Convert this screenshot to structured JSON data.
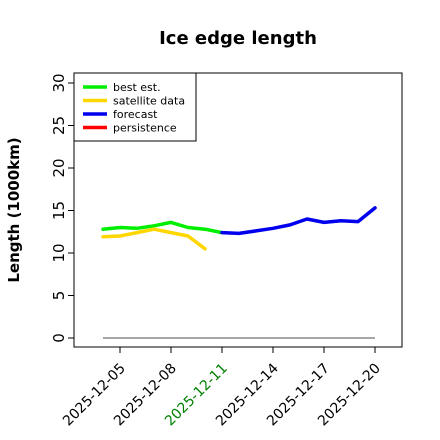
{
  "chart_data": {
    "type": "line",
    "title": "Ice edge length",
    "xlabel": "",
    "ylabel": "Length (1000km)",
    "ylim": [
      0,
      30
    ],
    "yticks": [
      0,
      5,
      10,
      15,
      20,
      25,
      30
    ],
    "xticks": [
      {
        "label": "2025-12-05",
        "color": "#000000"
      },
      {
        "label": "2025-12-08",
        "color": "#000000"
      },
      {
        "label": "2025-12-11",
        "color": "#008000"
      },
      {
        "label": "2025-12-14",
        "color": "#000000"
      },
      {
        "label": "2025-12-17",
        "color": "#000000"
      },
      {
        "label": "2025-12-20",
        "color": "#000000"
      }
    ],
    "legend_position": "top-left",
    "series": [
      {
        "name": "best est.",
        "color": "#00ee00",
        "x": [
          "2025-12-04",
          "2025-12-05",
          "2025-12-06",
          "2025-12-07",
          "2025-12-08",
          "2025-12-09",
          "2025-12-10",
          "2025-12-11"
        ],
        "y": [
          12.8,
          13.0,
          12.9,
          13.2,
          13.6,
          13.0,
          12.8,
          12.4
        ]
      },
      {
        "name": "satellite data",
        "color": "#ffd700",
        "x": [
          "2025-12-04",
          "2025-12-05",
          "2025-12-06",
          "2025-12-07",
          "2025-12-08",
          "2025-12-09",
          "2025-12-10"
        ],
        "y": [
          11.9,
          12.0,
          12.4,
          12.8,
          12.4,
          12.0,
          10.5
        ]
      },
      {
        "name": "forecast",
        "color": "#0000ee",
        "x": [
          "2025-12-11",
          "2025-12-12",
          "2025-12-13",
          "2025-12-14",
          "2025-12-15",
          "2025-12-16",
          "2025-12-17",
          "2025-12-18",
          "2025-12-19",
          "2025-12-20"
        ],
        "y": [
          12.4,
          12.3,
          12.6,
          12.9,
          13.3,
          14.0,
          13.6,
          13.8,
          13.7,
          15.3
        ]
      },
      {
        "name": "persistence",
        "color": "#ff0000",
        "x": [],
        "y": []
      }
    ],
    "reference_line": {
      "color": "#888888",
      "x": [
        "2025-12-04",
        "2025-12-20"
      ],
      "y": [
        0,
        0
      ]
    }
  }
}
